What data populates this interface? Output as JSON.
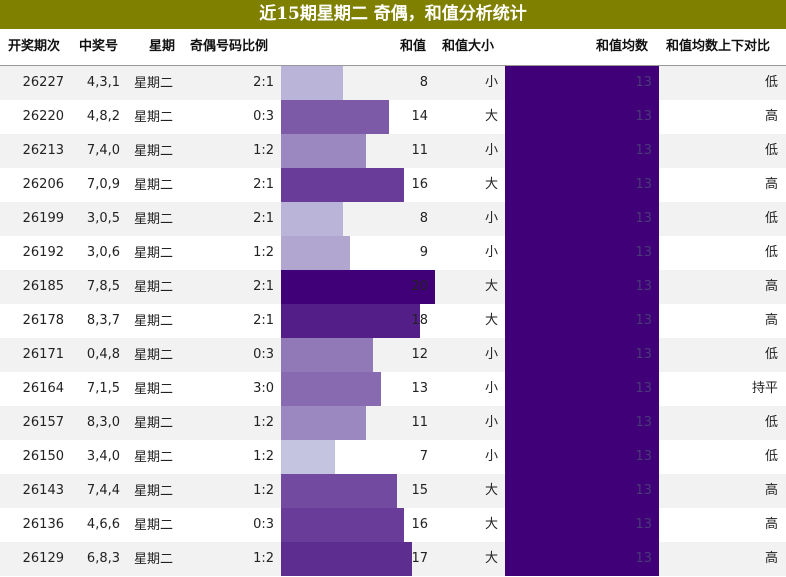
{
  "title": "近15期星期二 奇偶，和值分析统计",
  "headers": {
    "issue": "开奖期次",
    "numbers": "中奖号",
    "weekday": "星期",
    "ratio": "奇偶号码比例",
    "sum": "和值",
    "size": "和值大小",
    "avg": "和值均数",
    "compare": "和值均数上下对比"
  },
  "colors": {
    "title_bg": "#808000",
    "avg_bar": "#3f0078",
    "sum_bar_low": "#c4c4e0",
    "sum_bar_high": "#3f0078"
  },
  "chart_data": {
    "type": "table",
    "sum_range": [
      7,
      20
    ],
    "rows": [
      {
        "issue": "26227",
        "numbers": "4,3,1",
        "weekday": "星期二",
        "ratio": "2:1",
        "sum": 8,
        "size": "小",
        "avg": 13,
        "compare": "低"
      },
      {
        "issue": "26220",
        "numbers": "4,8,2",
        "weekday": "星期二",
        "ratio": "0:3",
        "sum": 14,
        "size": "大",
        "avg": 13,
        "compare": "高"
      },
      {
        "issue": "26213",
        "numbers": "7,4,0",
        "weekday": "星期二",
        "ratio": "1:2",
        "sum": 11,
        "size": "小",
        "avg": 13,
        "compare": "低"
      },
      {
        "issue": "26206",
        "numbers": "7,0,9",
        "weekday": "星期二",
        "ratio": "2:1",
        "sum": 16,
        "size": "大",
        "avg": 13,
        "compare": "高"
      },
      {
        "issue": "26199",
        "numbers": "3,0,5",
        "weekday": "星期二",
        "ratio": "2:1",
        "sum": 8,
        "size": "小",
        "avg": 13,
        "compare": "低"
      },
      {
        "issue": "26192",
        "numbers": "3,0,6",
        "weekday": "星期二",
        "ratio": "1:2",
        "sum": 9,
        "size": "小",
        "avg": 13,
        "compare": "低"
      },
      {
        "issue": "26185",
        "numbers": "7,8,5",
        "weekday": "星期二",
        "ratio": "2:1",
        "sum": 20,
        "size": "大",
        "avg": 13,
        "compare": "高"
      },
      {
        "issue": "26178",
        "numbers": "8,3,7",
        "weekday": "星期二",
        "ratio": "2:1",
        "sum": 18,
        "size": "大",
        "avg": 13,
        "compare": "高"
      },
      {
        "issue": "26171",
        "numbers": "0,4,8",
        "weekday": "星期二",
        "ratio": "0:3",
        "sum": 12,
        "size": "小",
        "avg": 13,
        "compare": "低"
      },
      {
        "issue": "26164",
        "numbers": "7,1,5",
        "weekday": "星期二",
        "ratio": "3:0",
        "sum": 13,
        "size": "小",
        "avg": 13,
        "compare": "持平"
      },
      {
        "issue": "26157",
        "numbers": "8,3,0",
        "weekday": "星期二",
        "ratio": "1:2",
        "sum": 11,
        "size": "小",
        "avg": 13,
        "compare": "低"
      },
      {
        "issue": "26150",
        "numbers": "3,4,0",
        "weekday": "星期二",
        "ratio": "1:2",
        "sum": 7,
        "size": "小",
        "avg": 13,
        "compare": "低"
      },
      {
        "issue": "26143",
        "numbers": "7,4,4",
        "weekday": "星期二",
        "ratio": "1:2",
        "sum": 15,
        "size": "大",
        "avg": 13,
        "compare": "高"
      },
      {
        "issue": "26136",
        "numbers": "4,6,6",
        "weekday": "星期二",
        "ratio": "0:3",
        "sum": 16,
        "size": "大",
        "avg": 13,
        "compare": "高"
      },
      {
        "issue": "26129",
        "numbers": "6,8,3",
        "weekday": "星期二",
        "ratio": "1:2",
        "sum": 17,
        "size": "大",
        "avg": 13,
        "compare": "高"
      }
    ]
  }
}
